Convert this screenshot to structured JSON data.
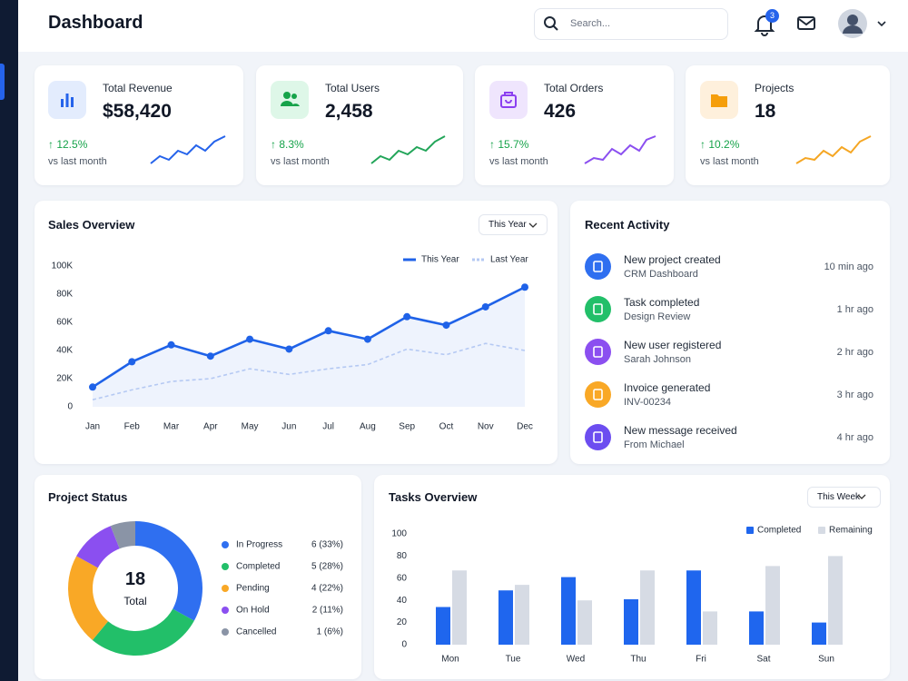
{
  "header": {
    "title": "Dashboard",
    "search_placeholder": "Search...",
    "notification_count": "3"
  },
  "stats": [
    {
      "label": "Total Revenue",
      "value": "$58,420",
      "change": "↑ 12.5%",
      "note": "vs last month"
    },
    {
      "label": "Total Users",
      "value": "2,458",
      "change": "↑ 8.3%",
      "note": "vs last month"
    },
    {
      "label": "Total Orders",
      "value": "426",
      "change": "↑ 15.7%",
      "note": "vs last month"
    },
    {
      "label": "Projects",
      "value": "18",
      "change": "↑ 10.2%",
      "note": "vs last month"
    }
  ],
  "sales": {
    "filter": "This Year"
  },
  "activity": {
    "title": "Recent Activity",
    "items": [
      {
        "title": "New project created",
        "sub": "CRM Dashboard",
        "time": "10 min ago"
      },
      {
        "title": "Task completed",
        "sub": "Design Review",
        "time": "1 hr ago"
      },
      {
        "title": "New user registered",
        "sub": "Sarah Johnson",
        "time": "2 hr ago"
      },
      {
        "title": "Invoice generated",
        "sub": "INV-00234",
        "time": "3 hr ago"
      },
      {
        "title": "New message received",
        "sub": "From Michael",
        "time": "4 hr ago"
      }
    ]
  },
  "project_status": {
    "total": "18",
    "total_label": "Total"
  },
  "tasks": {
    "filter": "This Week"
  },
  "chart_data": [
    {
      "type": "line",
      "title": "Sales Overview",
      "categories": [
        "Jan",
        "Feb",
        "Mar",
        "Apr",
        "May",
        "Jun",
        "Jul",
        "Aug",
        "Sep",
        "Oct",
        "Nov",
        "Dec"
      ],
      "series": [
        {
          "name": "This Year",
          "color": "#1f62e8",
          "values": [
            14,
            32,
            44,
            36,
            48,
            41,
            54,
            48,
            64,
            58,
            71,
            85
          ]
        },
        {
          "name": "Last Year",
          "color": "#b5c9f3",
          "values": [
            5,
            12,
            18,
            20,
            27,
            23,
            27,
            30,
            41,
            37,
            45,
            40
          ]
        }
      ],
      "ylim": [
        0,
        100
      ],
      "yticks": [
        0,
        {
          "value": 20,
          "label": "20K"
        },
        {
          "value": 40,
          "label": "40K"
        },
        {
          "value": 60,
          "label": "60K"
        },
        {
          "value": 80,
          "label": "80K"
        },
        {
          "value": 100,
          "label": "100K"
        }
      ],
      "grid": false
    },
    {
      "type": "pie",
      "title": "Project Status",
      "categories": [
        "In Progress",
        "Completed",
        "Pending",
        "On Hold",
        "Cancelled"
      ],
      "values": [
        33,
        28,
        22,
        11,
        6
      ],
      "value_labels": [
        "6 (33%)",
        "5 (28%)",
        "4 (22%)",
        "2 (11%)",
        "1 (6%)"
      ],
      "colors": [
        "#2f6ff0",
        "#22bf69",
        "#f9a826",
        "#8b4ff0",
        "#8a94a6"
      ]
    },
    {
      "type": "bar",
      "title": "Tasks Overview",
      "categories": [
        "Mon",
        "Tue",
        "Wed",
        "Thu",
        "Fri",
        "Sat",
        "Sun"
      ],
      "series": [
        {
          "name": "Completed",
          "color": "#1f66ee",
          "values": [
            34,
            49,
            61,
            41,
            67,
            30,
            20
          ]
        },
        {
          "name": "Remaining",
          "color": "#d6dbe4",
          "values": [
            67,
            54,
            40,
            67,
            30,
            71,
            80
          ]
        }
      ],
      "ylim": [
        0,
        100
      ],
      "yticks": [
        0,
        20,
        40,
        60,
        80,
        100
      ],
      "grid": false
    }
  ]
}
